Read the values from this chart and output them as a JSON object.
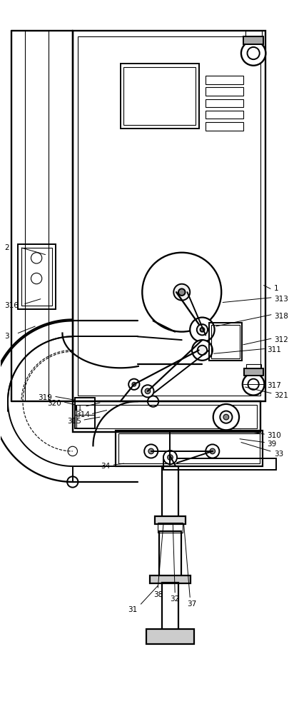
{
  "bg_color": "#ffffff",
  "line_color": "#000000",
  "figsize": [
    4.05,
    10.0
  ],
  "dpi": 100,
  "lw_main": 1.4,
  "lw_thin": 0.8,
  "lw_leader": 0.7,
  "fs_label": 7.5
}
